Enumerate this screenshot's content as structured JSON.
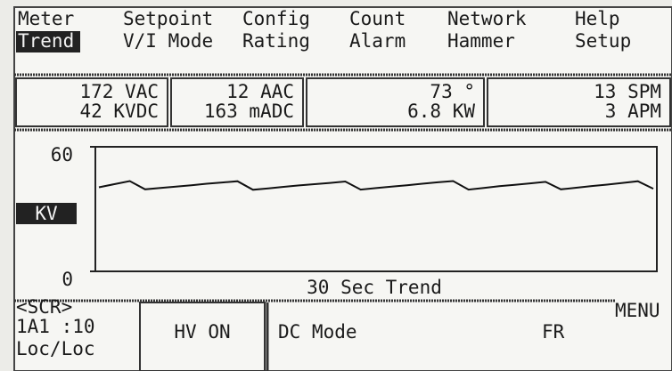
{
  "menu": {
    "row1": [
      "Meter",
      "Setpoint",
      "Config",
      "Count",
      "Network",
      "Help"
    ],
    "row2": [
      "Trend",
      "V/I Mode",
      "Rating",
      "Alarm",
      "Hammer",
      "Setup"
    ],
    "selected": 0
  },
  "readouts": [
    [
      "172 VAC",
      "42 KVDC"
    ],
    [
      "12 AAC",
      "163 mADC"
    ],
    [
      "73 °",
      "6.8 KW"
    ],
    [
      "13 SPM",
      "3 APM"
    ]
  ],
  "trend": {
    "type": "line",
    "title": "30 Sec Trend",
    "ylabel": "KV",
    "ylim": [
      0,
      60
    ],
    "yticks": [
      0,
      60
    ],
    "color": "#111111",
    "values": [
      40.5,
      42,
      43.5,
      39.5,
      40.2,
      40.8,
      41.5,
      42.2,
      42.8,
      43.4,
      39.3,
      40,
      40.7,
      41.4,
      42,
      42.6,
      43.3,
      39.4,
      40.1,
      40.8,
      41.5,
      42.2,
      42.9,
      43.5,
      39.4,
      40.2,
      41,
      41.7,
      42.4,
      43.1,
      39.5,
      40.3,
      41.1,
      41.8,
      42.6,
      43.4,
      39.8
    ]
  },
  "footer": {
    "screen": "<SCR>",
    "unit": "1A1 :10",
    "location": "Loc/Loc",
    "status": "HV ON",
    "mode": "DC Mode",
    "code": "FR",
    "menu": "MENU"
  }
}
